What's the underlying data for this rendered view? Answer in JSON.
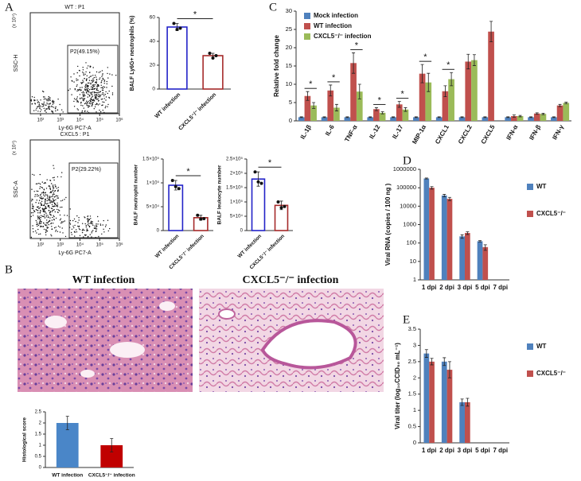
{
  "panel_labels": [
    "A",
    "B",
    "C",
    "D",
    "E"
  ],
  "flow_plots": [
    {
      "title": "WT : P1",
      "gate": "P2(49.15%)",
      "xlabel": "Ly-6G PC7-A",
      "ylabel": "SSC-H",
      "y_multiplier": "(x 10⁴)",
      "xlim": [
        30,
        1000000
      ],
      "xticks": [
        {
          "value": 100,
          "label": "10²"
        },
        {
          "value": 1000,
          "label": "10³"
        },
        {
          "value": 10000,
          "label": "10⁴"
        },
        {
          "value": 100000,
          "label": "10⁵"
        },
        {
          "value": 1000000,
          "label": "10⁶"
        }
      ]
    },
    {
      "title": "CXCL5 : P1",
      "gate": "P2(29.22%)",
      "xlabel": "Ly-6G PC7-A",
      "ylabel": "SSC-A",
      "y_multiplier": "(x 10⁴)",
      "xlim": [
        30,
        1000000
      ],
      "xticks": [
        {
          "value": 100,
          "label": "10²"
        },
        {
          "value": 1000,
          "label": "10³"
        },
        {
          "value": 10000,
          "label": "10⁴"
        },
        {
          "value": 100000,
          "label": "10⁵"
        },
        {
          "value": 1000000,
          "label": "10⁶"
        }
      ]
    }
  ],
  "histology": {
    "titles": [
      "WT infection",
      "CXCL5⁻/⁻ infection"
    ]
  },
  "chart_data": [
    {
      "type": "bar",
      "style": "outline",
      "ylabel": "BALF Ly6G+ neutrophils (%)",
      "categories": [
        "WT infection",
        "CXCL5⁻/⁻ infection"
      ],
      "series": [
        {
          "colors": [
            "#2323c8",
            "#a52a2a"
          ],
          "values": [
            52,
            28
          ],
          "errors": [
            3,
            2
          ],
          "points": [
            [
              55,
              50,
              51
            ],
            [
              30,
              26,
              28
            ]
          ]
        }
      ],
      "ylim": [
        0,
        60
      ],
      "yticks": [
        0,
        20,
        40,
        60
      ],
      "significance": {
        "label": "*"
      }
    },
    {
      "type": "bar",
      "style": "outline",
      "ylabel": "BALF neutrophil number",
      "categories": [
        "WT infection",
        "CXCL5⁻/⁻ infection"
      ],
      "series": [
        {
          "colors": [
            "#2323c8",
            "#a52a2a"
          ],
          "values": [
            95000,
            27000
          ],
          "errors": [
            10000,
            5000
          ],
          "points": [
            [
              105000,
              92000,
              88000
            ],
            [
              32000,
              24000,
              25000
            ]
          ]
        }
      ],
      "ylim": [
        0,
        150000
      ],
      "yticks": [
        0,
        {
          "value": 50000,
          "label": "5×10⁴"
        },
        {
          "value": 100000,
          "label": "1×10⁵"
        },
        {
          "value": 150000,
          "label": "1.5×10⁵"
        }
      ],
      "significance": {
        "label": "*"
      }
    },
    {
      "type": "bar",
      "style": "outline",
      "ylabel": "BALF leukocyte number",
      "categories": [
        "WT infection",
        "CXCL5⁻/⁻ infection"
      ],
      "series": [
        {
          "colors": [
            "#2323c8",
            "#a52a2a"
          ],
          "values": [
            180000,
            88000
          ],
          "errors": [
            25000,
            15000
          ],
          "points": [
            [
              205000,
              170000,
              165000
            ],
            [
              100000,
              80000,
              84000
            ]
          ]
        }
      ],
      "ylim": [
        0,
        250000
      ],
      "yticks": [
        0,
        {
          "value": 50000,
          "label": "5×10⁴"
        },
        {
          "value": 100000,
          "label": "1×10⁵"
        },
        {
          "value": 150000,
          "label": "1.5×10⁵"
        },
        {
          "value": 200000,
          "label": "2×10⁵"
        },
        {
          "value": 250000,
          "label": "2.5×10⁵"
        }
      ],
      "significance": {
        "label": "*"
      }
    },
    {
      "type": "bar",
      "ylabel": "Histological score",
      "categories": [
        "WT infection",
        "CXCL5⁻/⁻ infection"
      ],
      "series": [
        {
          "colors": [
            "#4a86c8",
            "#c00000"
          ],
          "values": [
            2.0,
            1.0
          ],
          "errors": [
            0.3,
            0.3
          ]
        }
      ],
      "ylim": [
        0,
        2.5
      ],
      "yticks": [
        0,
        0.5,
        1,
        1.5,
        2,
        2.5
      ]
    },
    {
      "type": "bar",
      "ylabel": "Relative fold change",
      "legend": "top-left",
      "categories": [
        "IL-1β",
        "IL-6",
        "TNF-α",
        "IL-12",
        "IL-17",
        "MIP-1α",
        "CXCL1",
        "CXCL2",
        "CXCL5",
        "IFN-α",
        "IFN-β",
        "IFN-γ"
      ],
      "series": [
        {
          "name": "Mock infection",
          "color": "#4f81bd",
          "values": [
            1,
            1,
            1,
            1,
            1,
            1,
            1,
            1,
            1,
            1,
            1,
            1
          ],
          "errors": [
            0.1,
            0.1,
            0.1,
            0.1,
            0.1,
            0.1,
            0.1,
            0.1,
            0.1,
            0.1,
            0.1,
            0.1
          ]
        },
        {
          "name": "WT infection",
          "color": "#c0504d",
          "values": [
            6.8,
            8.3,
            15.8,
            3.2,
            4.5,
            12.9,
            8.1,
            16.2,
            24.4,
            1.3,
            2.0,
            4.2
          ],
          "errors": [
            1.2,
            1.5,
            2.8,
            0.4,
            0.8,
            2.5,
            1.5,
            2.0,
            2.8,
            0.3,
            0.2,
            0.3
          ]
        },
        {
          "name": "CXCL5⁻/⁻ infection",
          "color": "#9bbb59",
          "values": [
            4.2,
            3.6,
            8.0,
            2.2,
            3.1,
            10.5,
            11.4,
            16.6,
            null,
            1.3,
            1.9,
            4.9
          ],
          "errors": [
            0.8,
            0.9,
            2.0,
            0.3,
            0.5,
            2.5,
            1.8,
            1.5,
            null,
            0.2,
            0.2,
            0.2
          ]
        }
      ],
      "ylim": [
        0,
        30
      ],
      "yticks": [
        0,
        5,
        10,
        15,
        20,
        25,
        30
      ],
      "significance": {
        "label": "*",
        "categories": [
          0,
          1,
          2,
          3,
          4,
          5,
          6
        ]
      }
    },
    {
      "type": "bar",
      "ylabel": "Viral RNA (copies / 100 ng )",
      "legend": "right",
      "log_y": true,
      "categories": [
        "1 dpi",
        "2 dpi",
        "3 dpi",
        "5 dpi",
        "7 dpi"
      ],
      "series": [
        {
          "name": "WT",
          "color": "#4f81bd",
          "values": [
            320000,
            38000,
            230,
            125,
            null
          ],
          "errors": [
            20000,
            6000,
            50,
            10,
            null
          ]
        },
        {
          "name": "CXCL5⁻/⁻",
          "color": "#c0504d",
          "values": [
            100000,
            25000,
            350,
            60,
            null
          ],
          "errors": [
            15000,
            5000,
            60,
            20,
            null
          ]
        }
      ],
      "ylim": [
        1,
        1000000
      ],
      "yticks": [
        1,
        10,
        100,
        1000,
        10000,
        100000,
        1000000
      ]
    },
    {
      "type": "bar",
      "ylabel": "Viral titer (log₁₀CCID₅₀ mL⁻¹)",
      "legend": "right",
      "categories": [
        "1 dpi",
        "2 dpi",
        "3 dpi",
        "5 dpi",
        "7 dpi"
      ],
      "series": [
        {
          "name": "WT",
          "color": "#4f81bd",
          "values": [
            2.75,
            2.5,
            1.25,
            null,
            null
          ],
          "errors": [
            0.12,
            0.12,
            0.1,
            null,
            null
          ]
        },
        {
          "name": "CXCL5⁻/⁻",
          "color": "#c0504d",
          "values": [
            2.5,
            2.25,
            1.25,
            null,
            null
          ],
          "errors": [
            0.1,
            0.25,
            0.12,
            null,
            null
          ]
        }
      ],
      "ylim": [
        0,
        3.5
      ],
      "yticks": [
        0,
        0.5,
        1,
        1.5,
        2,
        2.5,
        3,
        3.5
      ]
    }
  ]
}
